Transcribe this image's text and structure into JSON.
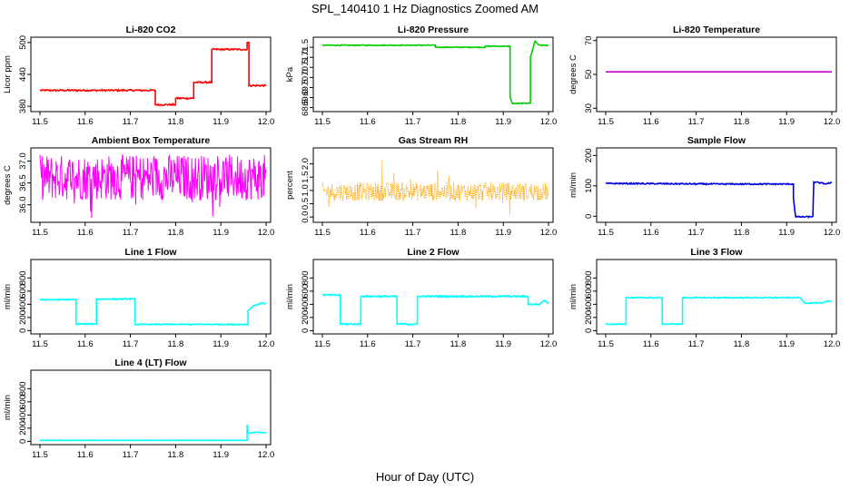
{
  "figure": {
    "title": "SPL_140410  1 Hz Diagnostics Zoomed AM",
    "xlabel": "Hour of Day (UTC)"
  },
  "chart_data": [
    {
      "type": "line",
      "title": "Li-820 CO2",
      "ylabel": "Licor ppm",
      "color": "#ff0000",
      "xlim": [
        11.48,
        12.01
      ],
      "ylim": [
        370,
        510
      ],
      "xticks": [
        "11.5",
        "11.6",
        "11.7",
        "11.8",
        "11.9",
        "12.0"
      ],
      "yticks": [
        "380",
        "440",
        "500"
      ],
      "style": "step",
      "noise": 1.5,
      "series": [
        {
          "name": "CO2",
          "x": [
            11.5,
            11.755,
            11.755,
            11.8,
            11.8,
            11.84,
            11.84,
            11.88,
            11.88,
            11.958,
            11.958,
            11.962,
            11.962,
            12.0
          ],
          "y": [
            410,
            410,
            383,
            383,
            395,
            395,
            425,
            425,
            487,
            487,
            500,
            500,
            419,
            419
          ]
        }
      ]
    },
    {
      "type": "line",
      "title": "Li-820 Pressure",
      "ylabel": "kPa",
      "color": "#00cc00",
      "xlim": [
        11.48,
        12.01
      ],
      "ylim": [
        68.3,
        72.0
      ],
      "xticks": [
        "11.5",
        "11.6",
        "11.7",
        "11.8",
        "11.9",
        "12.0"
      ],
      "yticks": [
        "68.5",
        "69.0",
        "69.5",
        "70.0",
        "70.5",
        "71.0",
        "71.5"
      ],
      "style": "step",
      "noise": 0.02,
      "series": [
        {
          "name": "Pressure",
          "x": [
            11.5,
            11.75,
            11.75,
            11.86,
            11.86,
            11.915,
            11.915,
            11.92,
            11.92,
            11.96,
            11.96,
            11.97,
            11.98,
            12.0
          ],
          "y": [
            71.6,
            71.6,
            71.5,
            71.5,
            71.55,
            71.55,
            69.0,
            68.7,
            68.7,
            68.72,
            71.0,
            71.8,
            71.6,
            71.6
          ]
        }
      ]
    },
    {
      "type": "line",
      "title": "Li-820 Temperature",
      "ylabel": "degrees C",
      "color": "#cc00cc",
      "xlim": [
        11.48,
        12.01
      ],
      "ylim": [
        28,
        72
      ],
      "xticks": [
        "11.5",
        "11.6",
        "11.7",
        "11.8",
        "11.9",
        "12.0"
      ],
      "yticks": [
        "30",
        "50",
        "70"
      ],
      "style": "line",
      "noise": 0,
      "series": [
        {
          "name": "Temperature",
          "x": [
            11.5,
            12.0
          ],
          "y": [
            51.5,
            51.5
          ]
        }
      ]
    },
    {
      "type": "line",
      "title": "Ambient Box Temperature",
      "ylabel": "degrees C",
      "color": "#ff00ff",
      "xlim": [
        11.48,
        12.01
      ],
      "ylim": [
        35.6,
        37.3
      ],
      "xticks": [
        "11.5",
        "11.6",
        "11.7",
        "11.8",
        "11.9",
        "12.0"
      ],
      "yticks": [
        "36.0",
        "36.5",
        "37.0"
      ],
      "style": "oscillate",
      "band": [
        36.1,
        37.15
      ],
      "series": [
        {
          "name": "Box temperature",
          "x": [
            11.5,
            12.0
          ],
          "y": [
            36.6,
            36.6
          ]
        }
      ]
    },
    {
      "type": "line",
      "title": "Gas Stream RH",
      "ylabel": "percent",
      "color": "#ffa500",
      "xlim": [
        11.48,
        12.01
      ],
      "ylim": [
        -0.2,
        2.6
      ],
      "xticks": [
        "11.5",
        "11.6",
        "11.7",
        "11.8",
        "11.9",
        "12.0"
      ],
      "yticks": [
        "0.0",
        "0.5",
        "1.0",
        "1.5",
        "2.0"
      ],
      "style": "oscillate-dots",
      "band": [
        0.6,
        1.3
      ],
      "series": [
        {
          "name": "RH",
          "x": [
            11.5,
            12.0
          ],
          "y": [
            0.95,
            0.95
          ]
        }
      ]
    },
    {
      "type": "line",
      "title": "Sample Flow",
      "ylabel": "ml/min",
      "color": "#0000dd",
      "xlim": [
        11.48,
        12.01
      ],
      "ylim": [
        -20,
        225
      ],
      "xticks": [
        "11.5",
        "11.6",
        "11.7",
        "11.8",
        "11.9",
        "12.0"
      ],
      "yticks": [
        "0",
        "100",
        "200"
      ],
      "style": "step",
      "noise": 2,
      "series": [
        {
          "name": "Sample flow",
          "x": [
            11.5,
            11.75,
            11.915,
            11.915,
            11.92,
            11.955,
            11.958,
            11.96,
            11.985,
            12.0
          ],
          "y": [
            108,
            106,
            106,
            60,
            -2,
            -2,
            0,
            113,
            107,
            110
          ]
        }
      ]
    },
    {
      "type": "line",
      "title": "Line 1 Flow",
      "ylabel": "ml/min",
      "color": "#00ffff",
      "xlim": [
        11.48,
        12.01
      ],
      "ylim": [
        -50,
        1080
      ],
      "xticks": [
        "11.5",
        "11.6",
        "11.7",
        "11.8",
        "11.9",
        "12.0"
      ],
      "yticks": [
        "0",
        "200",
        "400",
        "600",
        "800"
      ],
      "style": "step",
      "noise": 8,
      "series": [
        {
          "name": "Line 1",
          "x": [
            11.5,
            11.58,
            11.58,
            11.625,
            11.625,
            11.71,
            11.71,
            11.96,
            11.96,
            11.97,
            11.99,
            12.0
          ],
          "y": [
            470,
            470,
            100,
            100,
            480,
            480,
            95,
            95,
            300,
            370,
            420,
            410
          ]
        }
      ]
    },
    {
      "type": "line",
      "title": "Line 2 Flow",
      "ylabel": "ml/min",
      "color": "#00ffff",
      "xlim": [
        11.48,
        12.01
      ],
      "ylim": [
        -50,
        1080
      ],
      "xticks": [
        "11.5",
        "11.6",
        "11.7",
        "11.8",
        "11.9",
        "12.0"
      ],
      "yticks": [
        "0",
        "200",
        "400",
        "600",
        "800"
      ],
      "style": "step",
      "noise": 12,
      "series": [
        {
          "name": "Line 2",
          "x": [
            11.5,
            11.54,
            11.54,
            11.585,
            11.585,
            11.665,
            11.665,
            11.71,
            11.71,
            11.955,
            11.955,
            11.98,
            11.99,
            12.0
          ],
          "y": [
            540,
            540,
            100,
            100,
            520,
            520,
            100,
            100,
            520,
            520,
            400,
            400,
            460,
            420
          ]
        }
      ]
    },
    {
      "type": "line",
      "title": "Line 3 Flow",
      "ylabel": "ml/min",
      "color": "#00ffff",
      "xlim": [
        11.48,
        12.01
      ],
      "ylim": [
        -50,
        1080
      ],
      "xticks": [
        "11.5",
        "11.6",
        "11.7",
        "11.8",
        "11.9",
        "12.0"
      ],
      "yticks": [
        "0",
        "200",
        "400",
        "600",
        "800"
      ],
      "style": "step",
      "noise": 8,
      "series": [
        {
          "name": "Line 3",
          "x": [
            11.5,
            11.545,
            11.545,
            11.625,
            11.625,
            11.67,
            11.67,
            11.93,
            11.94,
            11.98,
            11.99,
            12.0
          ],
          "y": [
            100,
            100,
            500,
            500,
            100,
            100,
            500,
            500,
            420,
            420,
            450,
            450
          ]
        }
      ]
    },
    {
      "type": "line",
      "title": "Line 4 (LT) Flow",
      "ylabel": "ml/min",
      "color": "#00ffff",
      "xlim": [
        11.48,
        12.01
      ],
      "ylim": [
        -50,
        1080
      ],
      "xticks": [
        "11.5",
        "11.6",
        "11.7",
        "11.8",
        "11.9",
        "12.0"
      ],
      "yticks": [
        "0",
        "200",
        "400",
        "600",
        "800"
      ],
      "style": "step",
      "noise": 2,
      "series": [
        {
          "name": "Line 4",
          "x": [
            11.5,
            11.958,
            11.958,
            11.96,
            11.962,
            11.975,
            12.0
          ],
          "y": [
            15,
            15,
            250,
            150,
            120,
            140,
            130
          ]
        }
      ]
    }
  ]
}
